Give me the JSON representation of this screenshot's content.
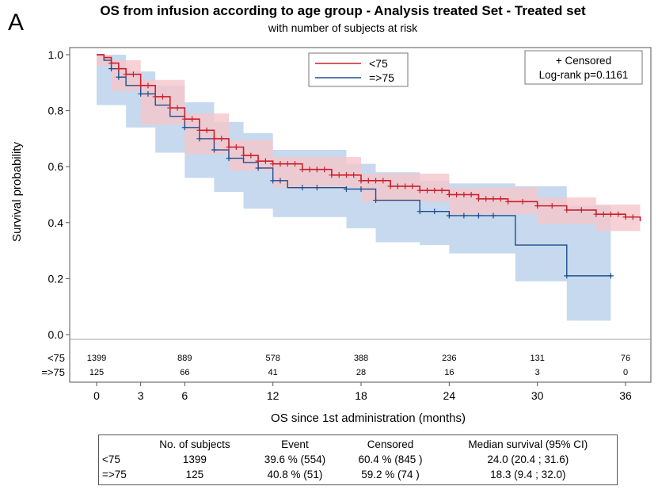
{
  "panel_label": "A",
  "chart_data": {
    "type": "line",
    "title": "OS from infusion according to age group - Analysis treated Set - Treated set",
    "subtitle": "with number of subjects at risk",
    "xlabel": "OS since 1st administration (months)",
    "ylabel": "Survival probability",
    "xlim": [
      -1,
      37
    ],
    "ylim": [
      0,
      1.0
    ],
    "x_ticks": [
      0,
      3,
      6,
      12,
      18,
      24,
      30,
      36
    ],
    "y_ticks": [
      "0.0",
      "0.2",
      "0.4",
      "0.6",
      "0.8",
      "1.0"
    ],
    "legend": {
      "placement": "top-center",
      "entries": [
        "<75",
        "=>75"
      ]
    },
    "annotation": {
      "line1": "+ Censored",
      "line2": "Log-rank p=0.1161",
      "placement": "top-right"
    },
    "colors": {
      "lt75": "#cc1f2a",
      "ge75": "#1f4e8c",
      "lt75_band": "#f5c6ca",
      "ge75_band": "#bcd2ec"
    },
    "series": [
      {
        "name": "<75",
        "color": "#cc1f2a",
        "points": [
          [
            0,
            1.0
          ],
          [
            0.5,
            0.99
          ],
          [
            1,
            0.97
          ],
          [
            1.5,
            0.95
          ],
          [
            2,
            0.93
          ],
          [
            3,
            0.89
          ],
          [
            4,
            0.85
          ],
          [
            5,
            0.81
          ],
          [
            6,
            0.77
          ],
          [
            7,
            0.73
          ],
          [
            8,
            0.7
          ],
          [
            9,
            0.67
          ],
          [
            10,
            0.64
          ],
          [
            11,
            0.62
          ],
          [
            12,
            0.61
          ],
          [
            14,
            0.59
          ],
          [
            16,
            0.57
          ],
          [
            18,
            0.55
          ],
          [
            20,
            0.53
          ],
          [
            22,
            0.515
          ],
          [
            24,
            0.5
          ],
          [
            26,
            0.485
          ],
          [
            28,
            0.475
          ],
          [
            30,
            0.46
          ],
          [
            32,
            0.445
          ],
          [
            34,
            0.43
          ],
          [
            36,
            0.42
          ],
          [
            37,
            0.405
          ]
        ],
        "ci_lower": [
          [
            0,
            1.0
          ],
          [
            1,
            0.96
          ],
          [
            3,
            0.87
          ],
          [
            6,
            0.75
          ],
          [
            9,
            0.645
          ],
          [
            12,
            0.585
          ],
          [
            18,
            0.525
          ],
          [
            24,
            0.475
          ],
          [
            30,
            0.43
          ],
          [
            34,
            0.395
          ],
          [
            37,
            0.37
          ]
        ],
        "ci_upper": [
          [
            0,
            1.0
          ],
          [
            1,
            0.98
          ],
          [
            3,
            0.91
          ],
          [
            6,
            0.79
          ],
          [
            9,
            0.695
          ],
          [
            12,
            0.635
          ],
          [
            18,
            0.575
          ],
          [
            24,
            0.525
          ],
          [
            30,
            0.49
          ],
          [
            34,
            0.465
          ],
          [
            37,
            0.445
          ]
        ]
      },
      {
        "name": "=>75",
        "color": "#1f4e8c",
        "points": [
          [
            0,
            1.0
          ],
          [
            0.5,
            0.98
          ],
          [
            1,
            0.95
          ],
          [
            1.5,
            0.92
          ],
          [
            2,
            0.89
          ],
          [
            3,
            0.86
          ],
          [
            4,
            0.82
          ],
          [
            5,
            0.78
          ],
          [
            6,
            0.74
          ],
          [
            7,
            0.7
          ],
          [
            8,
            0.66
          ],
          [
            9,
            0.63
          ],
          [
            10,
            0.615
          ],
          [
            11,
            0.595
          ],
          [
            12,
            0.55
          ],
          [
            13,
            0.525
          ],
          [
            17,
            0.52
          ],
          [
            19,
            0.48
          ],
          [
            22,
            0.44
          ],
          [
            24,
            0.425
          ],
          [
            28.5,
            0.425
          ],
          [
            28.5,
            0.32
          ],
          [
            32,
            0.32
          ],
          [
            32,
            0.21
          ],
          [
            35,
            0.21
          ]
        ],
        "ci_lower": [
          [
            0,
            1.0
          ],
          [
            2,
            0.82
          ],
          [
            4,
            0.74
          ],
          [
            6,
            0.65
          ],
          [
            8,
            0.56
          ],
          [
            10,
            0.51
          ],
          [
            12,
            0.45
          ],
          [
            17,
            0.42
          ],
          [
            19,
            0.38
          ],
          [
            22,
            0.33
          ],
          [
            24,
            0.32
          ],
          [
            28.5,
            0.29
          ],
          [
            28.5,
            0.19
          ],
          [
            32,
            0.19
          ],
          [
            32,
            0.05
          ],
          [
            35,
            0.05
          ]
        ],
        "ci_upper": [
          [
            0,
            1.0
          ],
          [
            2,
            0.94
          ],
          [
            4,
            0.89
          ],
          [
            6,
            0.83
          ],
          [
            8,
            0.76
          ],
          [
            10,
            0.72
          ],
          [
            12,
            0.66
          ],
          [
            17,
            0.61
          ],
          [
            19,
            0.58
          ],
          [
            22,
            0.55
          ],
          [
            24,
            0.54
          ],
          [
            28.5,
            0.53
          ],
          [
            32,
            0.46
          ],
          [
            35,
            0.44
          ]
        ]
      }
    ],
    "censor_marks": {
      "<75": [
        1,
        1.5,
        2,
        2.5,
        3,
        3.5,
        4,
        4.5,
        5,
        5.5,
        6,
        6.5,
        7,
        7.5,
        8,
        8.5,
        9,
        9.5,
        10,
        10.5,
        11,
        11.5,
        12,
        12.5,
        13,
        13.5,
        14,
        14.5,
        15,
        15.5,
        16,
        16.5,
        17,
        17.5,
        18,
        18.5,
        19,
        19.5,
        20,
        20.5,
        21,
        21.5,
        22,
        22.5,
        23,
        23.5,
        24,
        24.5,
        25,
        25.5,
        26,
        26.5,
        27,
        27.5,
        28,
        29,
        30,
        31,
        32,
        33,
        34,
        34.5,
        35,
        35.5,
        36,
        36.5
      ],
      "=>75": [
        1,
        1.5,
        3,
        3.5,
        6,
        7,
        8,
        9,
        11,
        12,
        12.5,
        14,
        15,
        17,
        18,
        19,
        22,
        23,
        24,
        25,
        26,
        27,
        32,
        35
      ]
    },
    "at_risk": {
      "times": [
        0,
        6,
        12,
        18,
        24,
        30,
        36
      ],
      "rows": [
        {
          "label": "<75",
          "values": [
            "1399",
            "889",
            "578",
            "388",
            "236",
            "131",
            "76"
          ]
        },
        {
          "label": "=>75",
          "values": [
            "125",
            "66",
            "41",
            "28",
            "16",
            "3",
            "0"
          ]
        }
      ]
    }
  },
  "stats_table": {
    "headers": [
      "",
      "No. of subjects",
      "Event",
      "Censored",
      "Median survival (95% CI)"
    ],
    "rows": [
      [
        "<75",
        "1399",
        "39.6 % (554)",
        "60.4 % (845 )",
        "24.0 (20.4 ; 31.6)"
      ],
      [
        "=>75",
        "125",
        "40.8 % (51)",
        "59.2 % (74 )",
        "18.3 (9.4 ; 32.0)"
      ]
    ]
  }
}
